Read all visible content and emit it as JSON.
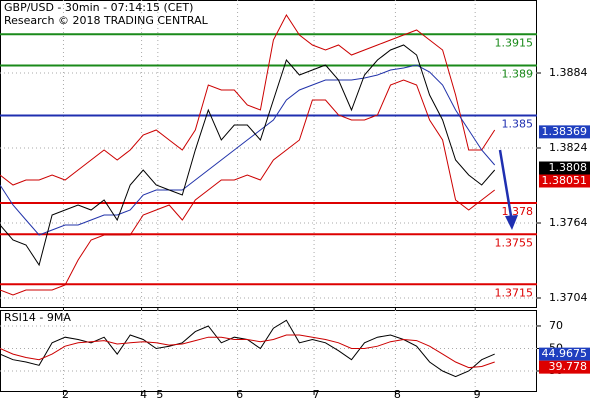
{
  "chart_data": [
    {
      "type": "line",
      "title": "GBP/USD - 30min - 07:14:15 (CET)",
      "subtitle": "Research © 2018 TRADING CENTRAL",
      "x": [
        0,
        8,
        16,
        24,
        32,
        40,
        48,
        56,
        64,
        72,
        80,
        88,
        96,
        104,
        112,
        120,
        128,
        136,
        144,
        152,
        160,
        168,
        176,
        184,
        192,
        200,
        208,
        216,
        224,
        232,
        240,
        248,
        256,
        264,
        272,
        280,
        288,
        296,
        304
      ],
      "xlim": [
        0,
        330
      ],
      "ylim": [
        1.36968,
        1.39424
      ],
      "yticks": [
        1.3704,
        1.3764,
        1.3824,
        1.3884
      ],
      "grid": true,
      "series": [
        {
          "color": "#cc0000",
          "values": [
            1.38024,
            1.37944,
            1.37984,
            1.37984,
            1.38024,
            1.37984,
            1.38064,
            1.38144,
            1.38224,
            1.38144,
            1.38224,
            1.38344,
            1.38384,
            1.38304,
            1.38224,
            1.38384,
            1.38744,
            1.38704,
            1.38704,
            1.38584,
            1.38544,
            1.39104,
            1.39304,
            1.39144,
            1.39064,
            1.39024,
            1.39064,
            1.38984,
            1.39024,
            1.39064,
            1.39104,
            1.39144,
            1.39184,
            1.39104,
            1.39024,
            1.38664,
            1.38224,
            1.38224,
            1.38384
          ]
        },
        {
          "color": "#cc0000",
          "values": [
            1.37104,
            1.37064,
            1.37104,
            1.37104,
            1.37104,
            1.37144,
            1.37344,
            1.37504,
            1.37544,
            1.37544,
            1.37544,
            1.37704,
            1.37744,
            1.37784,
            1.37664,
            1.37824,
            1.37904,
            1.37984,
            1.37984,
            1.38024,
            1.37984,
            1.38144,
            1.38224,
            1.38304,
            1.38624,
            1.38624,
            1.38504,
            1.38464,
            1.38464,
            1.38504,
            1.38744,
            1.38784,
            1.38744,
            1.38464,
            1.38304,
            1.37824,
            1.37744,
            1.37824,
            1.37904
          ]
        },
        {
          "color": "#2233aa",
          "values": [
            1.37944,
            1.37784,
            1.37664,
            1.37544,
            1.37584,
            1.37624,
            1.37624,
            1.37664,
            1.37704,
            1.37704,
            1.37744,
            1.37864,
            1.37904,
            1.37904,
            1.37904,
            1.37984,
            1.38064,
            1.38144,
            1.38224,
            1.38304,
            1.38384,
            1.38464,
            1.38624,
            1.38704,
            1.38744,
            1.38784,
            1.38784,
            1.38784,
            1.388,
            1.38824,
            1.38864,
            1.3888,
            1.38904,
            1.38848,
            1.38744,
            1.38544,
            1.38384,
            1.38224,
            1.38104
          ]
        },
        {
          "color": "#000000",
          "values": [
            1.37624,
            1.37504,
            1.37464,
            1.37304,
            1.37704,
            1.37744,
            1.37784,
            1.37744,
            1.37824,
            1.37664,
            1.37944,
            1.38064,
            1.37944,
            1.37904,
            1.37864,
            1.38224,
            1.38544,
            1.38304,
            1.38424,
            1.38424,
            1.38304,
            1.38624,
            1.38944,
            1.38824,
            1.38864,
            1.38904,
            1.38784,
            1.38544,
            1.38824,
            1.38944,
            1.39024,
            1.39064,
            1.38984,
            1.38664,
            1.38464,
            1.38144,
            1.38024,
            1.37944,
            1.38064
          ]
        }
      ],
      "levels": [
        {
          "value": 1.3915,
          "color": "#1a8a1a"
        },
        {
          "value": 1.389,
          "color": "#1a8a1a"
        },
        {
          "value": 1.385,
          "color": "#1f2fb0"
        },
        {
          "value": 1.378,
          "color": "#dd0000"
        },
        {
          "value": 1.3755,
          "color": "#dd0000"
        },
        {
          "value": 1.3715,
          "color": "#dd0000"
        }
      ],
      "last_values": [
        {
          "value": 1.38369,
          "color": "#1f3fbf"
        },
        {
          "value": 1.3808,
          "color": "#000000"
        },
        {
          "value": 1.38051,
          "color": "#dd0000"
        }
      ]
    },
    {
      "type": "line",
      "title": "RSI14 - 9MA",
      "x": [
        0,
        8,
        16,
        24,
        32,
        40,
        48,
        56,
        64,
        72,
        80,
        88,
        96,
        104,
        112,
        120,
        128,
        136,
        144,
        152,
        160,
        168,
        176,
        184,
        192,
        200,
        208,
        216,
        224,
        232,
        240,
        248,
        256,
        264,
        272,
        280,
        288,
        296,
        304
      ],
      "xlim": [
        0,
        330
      ],
      "ylim": [
        11.3,
        84.2
      ],
      "yticks": [
        30,
        50,
        70
      ],
      "xticks": [
        {
          "value": 39,
          "label": "2"
        },
        {
          "value": 87,
          "label": "4"
        },
        {
          "value": 97,
          "label": "5"
        },
        {
          "value": 146,
          "label": "6"
        },
        {
          "value": 193,
          "label": "7"
        },
        {
          "value": 243,
          "label": "8"
        },
        {
          "value": 292,
          "label": "9"
        }
      ],
      "grid": true,
      "series": [
        {
          "color": "#000000",
          "values": [
            45,
            40,
            38,
            35,
            55,
            60,
            58,
            55,
            60,
            45,
            62,
            58,
            50,
            52,
            55,
            65,
            70,
            55,
            60,
            58,
            50,
            68,
            75,
            55,
            58,
            55,
            48,
            40,
            55,
            60,
            62,
            58,
            52,
            38,
            30,
            25,
            30,
            40,
            45
          ]
        },
        {
          "color": "#cc0000",
          "values": [
            50,
            45,
            42,
            40,
            45,
            52,
            55,
            56,
            57,
            54,
            55,
            56,
            55,
            53,
            54,
            57,
            60,
            60,
            58,
            58,
            56,
            58,
            62,
            62,
            60,
            58,
            55,
            50,
            50,
            52,
            56,
            58,
            57,
            52,
            45,
            38,
            33,
            34,
            38
          ]
        }
      ],
      "last_values": [
        {
          "value": 44.9675,
          "color": "#1f3fbf"
        },
        {
          "value": 39.778,
          "color": "#dd0000"
        }
      ]
    }
  ]
}
